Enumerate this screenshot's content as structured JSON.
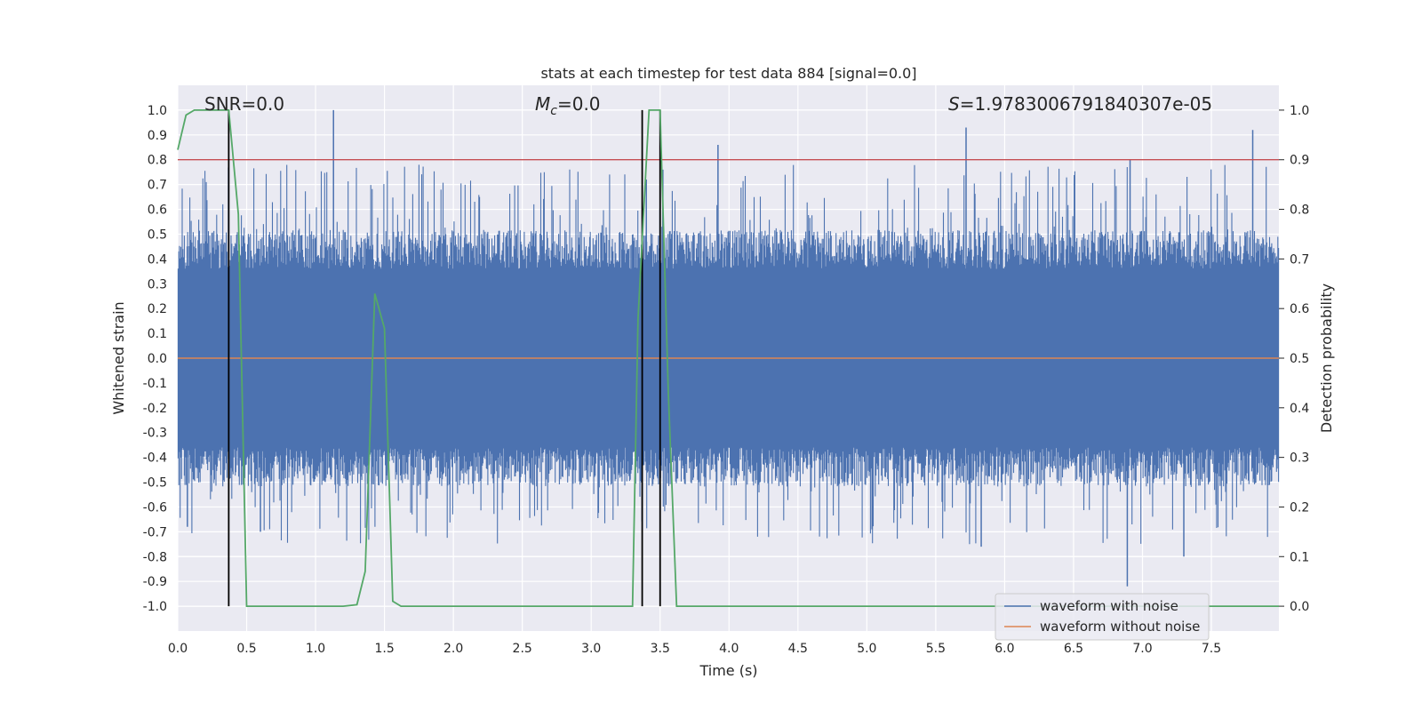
{
  "chart_data": {
    "type": "line",
    "title": "stats at each timestep for test data 884 [signal=0.0]",
    "xlabel": "Time (s)",
    "ylabel": "Whitened strain",
    "y2label": "Detection probability",
    "xlim": [
      0.0,
      7.99
    ],
    "ylim": [
      -1.1,
      1.1
    ],
    "y2lim": [
      -0.05,
      1.05
    ],
    "xticks": [
      0.0,
      0.5,
      1.0,
      1.5,
      2.0,
      2.5,
      3.0,
      3.5,
      4.0,
      4.5,
      5.0,
      5.5,
      6.0,
      6.5,
      7.0,
      7.5
    ],
    "xtick_labels": [
      "0.0",
      "0.5",
      "1.0",
      "1.5",
      "2.0",
      "2.5",
      "3.0",
      "3.5",
      "4.0",
      "4.5",
      "5.0",
      "5.5",
      "6.0",
      "6.5",
      "7.0",
      "7.5"
    ],
    "yticks": [
      1.0,
      0.9,
      0.8,
      0.7,
      0.6,
      0.5,
      0.4,
      0.3,
      0.2,
      0.1,
      0.0,
      -0.1,
      -0.2,
      -0.3,
      -0.4,
      -0.5,
      -0.6,
      -0.7,
      -0.8,
      -0.9,
      -1.0
    ],
    "ytick_labels": [
      "1.0",
      "0.9",
      "0.8",
      "0.7",
      "0.6",
      "0.5",
      "0.4",
      "0.3",
      "0.2",
      "0.1",
      "0.0",
      "-0.1",
      "-0.2",
      "-0.3",
      "-0.4",
      "-0.5",
      "-0.6",
      "-0.7",
      "-0.8",
      "-0.9",
      "-1.0"
    ],
    "y2ticks": [
      1.0,
      0.9,
      0.8,
      0.7,
      0.6,
      0.5,
      0.4,
      0.3,
      0.2,
      0.1,
      0.0
    ],
    "y2tick_labels": [
      "1.0",
      "0.9",
      "0.8",
      "0.7",
      "0.6",
      "0.5",
      "0.4",
      "0.3",
      "0.2",
      "0.1",
      "0.0"
    ],
    "annotations": {
      "snr": "SNR=0.0",
      "mc_symbol": "M",
      "mc_sub": "c",
      "mc_value": "=0.0",
      "s_symbol": "S",
      "s_value": "=1.9783006791840307e-05"
    },
    "threshold_y2": 0.9,
    "vertical_markers_x": [
      0.37,
      3.37,
      3.5
    ],
    "legend": {
      "position": "lower-right",
      "entries": [
        "waveform with noise",
        "waveform without noise"
      ]
    },
    "series": [
      {
        "name": "waveform with noise",
        "color": "#4c72b0",
        "axis": "left",
        "sample_count": 1600,
        "typical_envelope": [
          -0.45,
          0.45
        ],
        "peaks": [
          {
            "x": 1.13,
            "y": 1.0
          },
          {
            "x": 0.6,
            "y": -0.7
          },
          {
            "x": 3.92,
            "y": 0.86
          },
          {
            "x": 5.72,
            "y": 0.93
          },
          {
            "x": 6.91,
            "y": 0.8
          },
          {
            "x": 7.8,
            "y": 0.92
          },
          {
            "x": 6.89,
            "y": -0.92
          },
          {
            "x": 5.83,
            "y": -0.76
          },
          {
            "x": 7.3,
            "y": -0.8
          },
          {
            "x": 0.07,
            "y": -0.68
          },
          {
            "x": 3.4,
            "y": 0.72
          },
          {
            "x": 3.52,
            "y": 0.76
          }
        ]
      },
      {
        "name": "waveform without noise",
        "color": "#dd8452",
        "axis": "left",
        "x": [
          0.0,
          7.99
        ],
        "values": [
          0.0,
          0.0
        ]
      },
      {
        "name": "detection probability",
        "color": "#55a868",
        "axis": "right",
        "x": [
          0.0,
          0.06,
          0.12,
          0.25,
          0.37,
          0.44,
          0.5,
          1.2,
          1.3,
          1.36,
          1.43,
          1.5,
          1.56,
          1.62,
          3.3,
          3.34,
          3.42,
          3.5,
          3.56,
          3.62,
          7.99
        ],
        "values": [
          0.92,
          0.99,
          1.0,
          1.0,
          1.0,
          0.79,
          0.0,
          0.0,
          0.003,
          0.07,
          0.63,
          0.56,
          0.01,
          0.0,
          0.0,
          0.58,
          1.0,
          1.0,
          0.43,
          0.0,
          0.0
        ]
      }
    ]
  }
}
